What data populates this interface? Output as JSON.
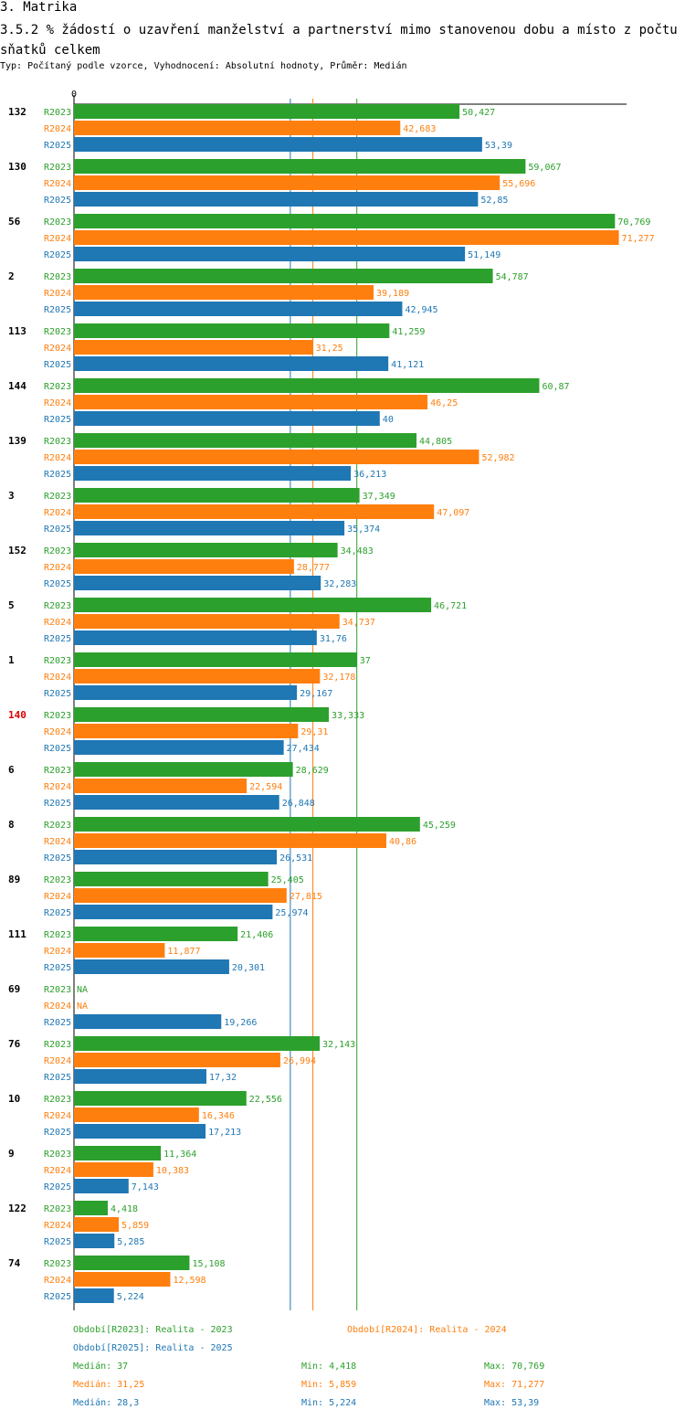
{
  "header": {
    "section": "3. Matrika",
    "title": "3.5.2 % žádostí o uzavření manželství a partnerství mimo stanovenou dobu a místo z počtu sňatků celkem",
    "subtitle": "Typ: Počítaný podle vzorce, Vyhodnocení: Absolutní hodnoty, Průměr: Medián"
  },
  "chart_data": {
    "type": "bar",
    "orientation": "horizontal",
    "axis_zero_label": "0",
    "xlim": [
      0,
      75
    ],
    "highlight_category": "140",
    "categories": [
      "132",
      "130",
      "56",
      "2",
      "113",
      "144",
      "139",
      "3",
      "152",
      "5",
      "1",
      "140",
      "6",
      "8",
      "89",
      "111",
      "69",
      "76",
      "10",
      "9",
      "122",
      "74"
    ],
    "series": [
      {
        "name": "R2023",
        "color": "#2ca02c",
        "values": [
          50.427,
          59.067,
          70.769,
          54.787,
          41.259,
          60.87,
          44.805,
          37.349,
          34.483,
          46.721,
          37,
          33.333,
          28.629,
          45.259,
          25.405,
          21.406,
          null,
          32.143,
          22.556,
          11.364,
          4.418,
          15.108
        ],
        "labels": [
          "50,427",
          "59,067",
          "70,769",
          "54,787",
          "41,259",
          "60,87",
          "44,805",
          "37,349",
          "34,483",
          "46,721",
          "37",
          "33,333",
          "28,629",
          "45,259",
          "25,405",
          "21,406",
          "NA",
          "32,143",
          "22,556",
          "11,364",
          "4,418",
          "15,108"
        ]
      },
      {
        "name": "R2024",
        "color": "#ff7f0e",
        "values": [
          42.683,
          55.696,
          71.277,
          39.189,
          31.25,
          46.25,
          52.982,
          47.097,
          28.777,
          34.737,
          32.178,
          29.31,
          22.594,
          40.86,
          27.815,
          11.877,
          null,
          26.994,
          16.346,
          10.383,
          5.859,
          12.598
        ],
        "labels": [
          "42,683",
          "55,696",
          "71,277",
          "39,189",
          "31,25",
          "46,25",
          "52,982",
          "47,097",
          "28,777",
          "34,737",
          "32,178",
          "29,31",
          "22,594",
          "40,86",
          "27,815",
          "11,877",
          "NA",
          "26,994",
          "16,346",
          "10,383",
          "5,859",
          "12,598"
        ]
      },
      {
        "name": "R2025",
        "color": "#1f77b4",
        "values": [
          53.39,
          52.85,
          51.149,
          42.945,
          41.121,
          40,
          36.213,
          35.374,
          32.283,
          31.76,
          29.167,
          27.434,
          26.848,
          26.531,
          25.974,
          20.301,
          19.266,
          17.32,
          17.213,
          7.143,
          5.285,
          5.224
        ],
        "labels": [
          "53,39",
          "52,85",
          "51,149",
          "42,945",
          "41,121",
          "40",
          "36,213",
          "35,374",
          "32,283",
          "31,76",
          "29,167",
          "27,434",
          "26,848",
          "26,531",
          "25,974",
          "20,301",
          "19,266",
          "17,32",
          "17,213",
          "7,143",
          "5,285",
          "5,224"
        ]
      }
    ],
    "median_lines": [
      {
        "series": "R2023",
        "value": 37,
        "color": "#2ca02c"
      },
      {
        "series": "R2024",
        "value": 31.25,
        "color": "#ff7f0e"
      },
      {
        "series": "R2025",
        "value": 28.3,
        "color": "#1f77b4"
      }
    ]
  },
  "legend": {
    "period_2023": "Období[R2023]: Realita - 2023",
    "period_2024": "Období[R2024]: Realita - 2024",
    "period_2025": "Období[R2025]: Realita - 2025",
    "stats": [
      {
        "median": "Medián: 37",
        "min": "Min: 4,418",
        "max": "Max: 70,769"
      },
      {
        "median": "Medián: 31,25",
        "min": "Min: 5,859",
        "max": "Max: 71,277"
      },
      {
        "median": "Medián: 28,3",
        "min": "Min: 5,224",
        "max": "Max: 53,39"
      }
    ]
  }
}
